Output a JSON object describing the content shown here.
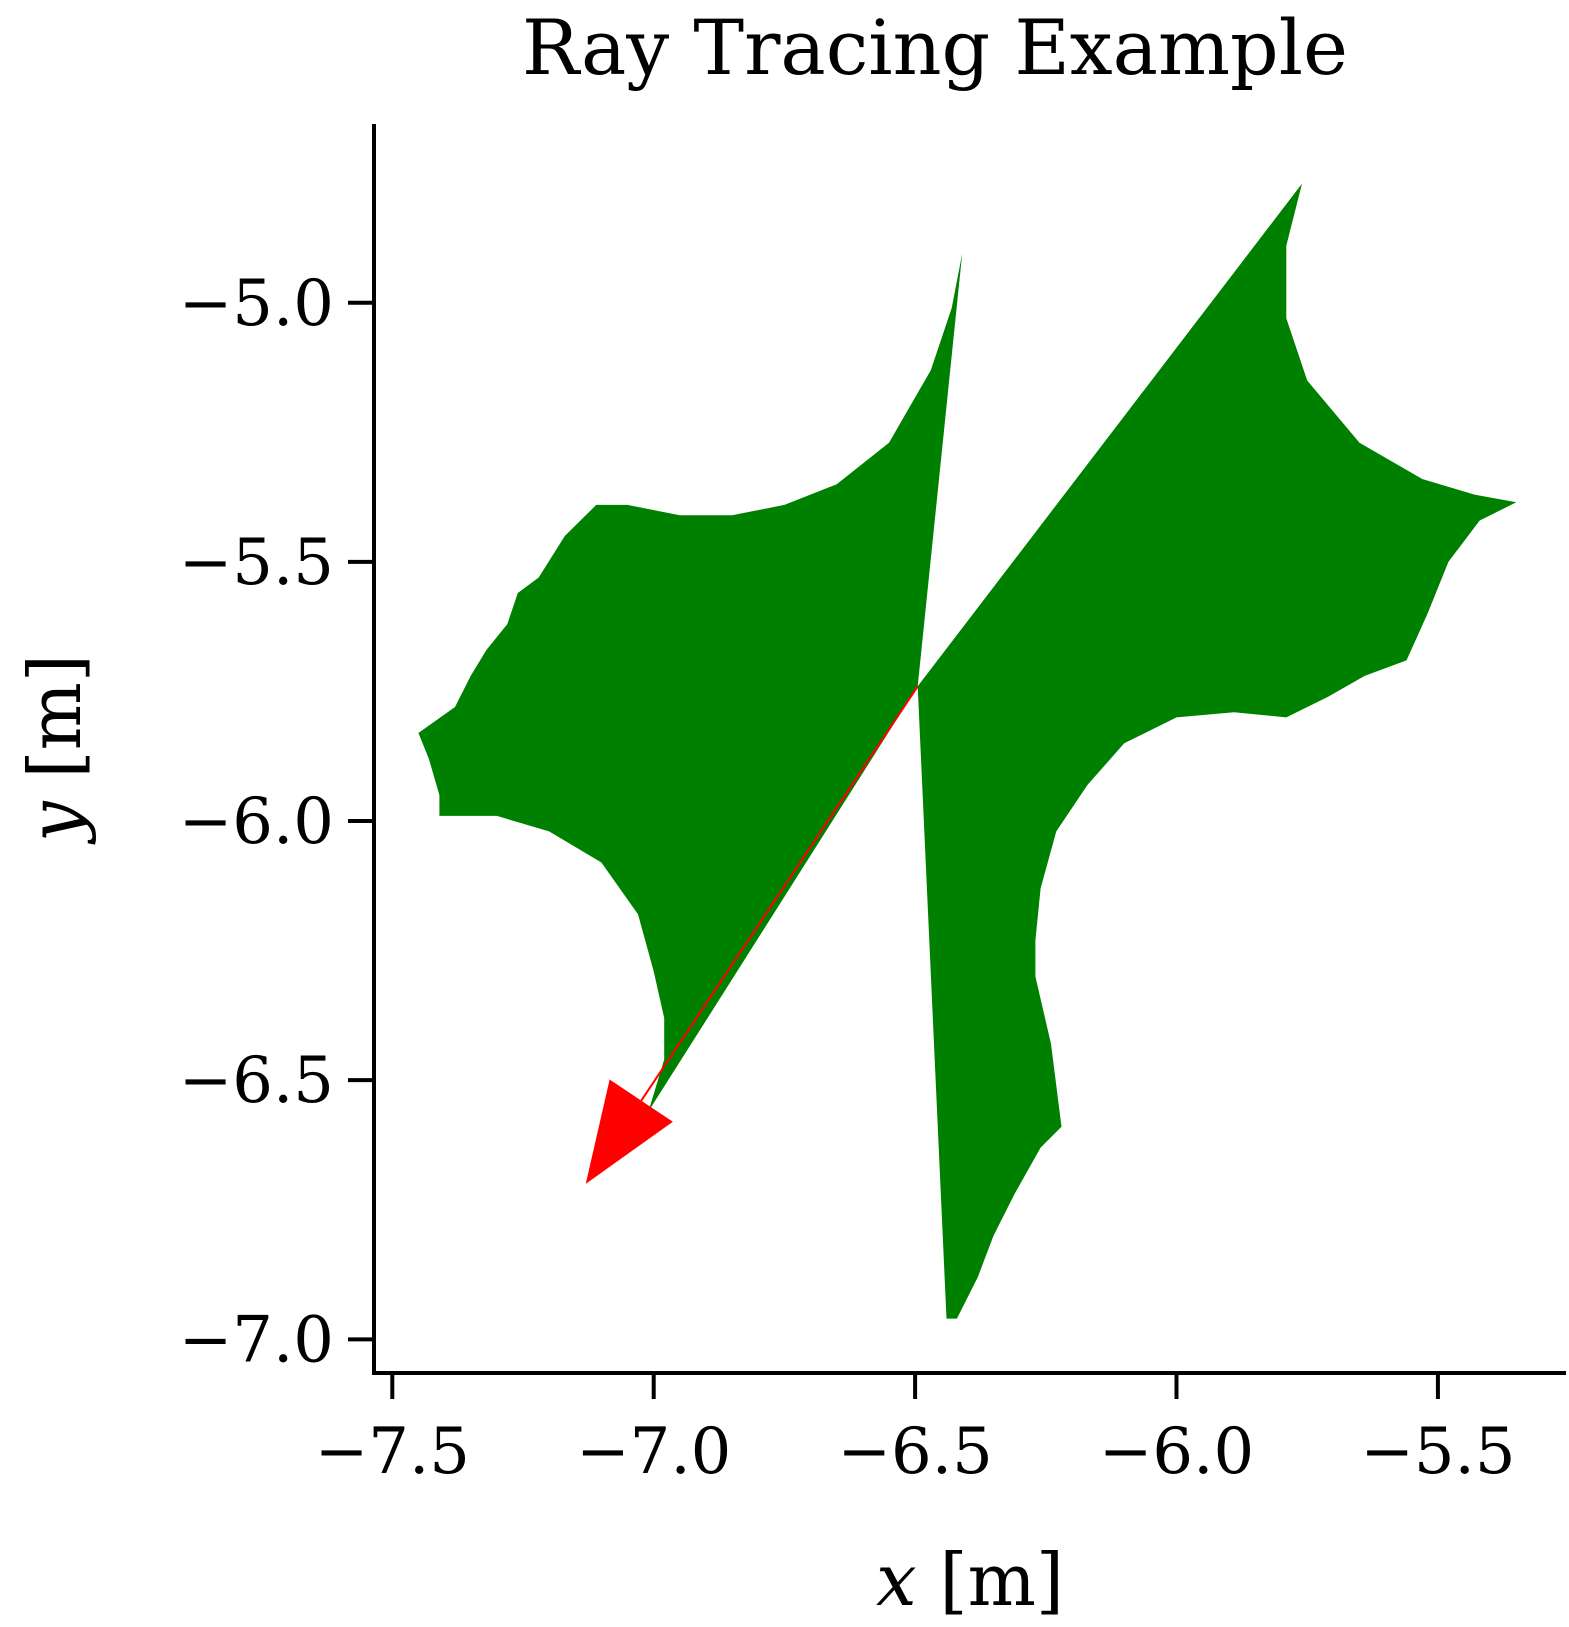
{
  "chart_data": {
    "type": "area",
    "title": "Ray Tracing Example",
    "xlabel": {
      "var": "x",
      "unit": " [m]"
    },
    "ylabel": {
      "var": "y",
      "unit": " [m]"
    },
    "xlim": [
      -7.535,
      -5.255
    ],
    "ylim": [
      -7.065,
      -4.655
    ],
    "xticks": [
      -7.5,
      -7.0,
      -6.5,
      -6.0,
      -5.5
    ],
    "yticks": [
      -5.0,
      -5.5,
      -6.0,
      -6.5,
      -7.0
    ],
    "xtick_labels": [
      "−7.5",
      "−7.0",
      "−6.5",
      "−6.0",
      "−5.5"
    ],
    "ytick_labels": [
      "−5.0",
      "−5.5",
      "−6.0",
      "−6.5",
      "−7.0"
    ],
    "grid": false,
    "colors": {
      "ray_fan": "#008000",
      "arrow": "#ff0000"
    },
    "series": [
      {
        "kind": "filled-region",
        "points": [
          [
            -6.495,
            -5.74
          ],
          [
            -6.41,
            -4.905
          ],
          [
            -6.43,
            -5.01
          ],
          [
            -6.47,
            -5.13
          ],
          [
            -6.55,
            -5.27
          ],
          [
            -6.65,
            -5.35
          ],
          [
            -6.75,
            -5.39
          ],
          [
            -6.85,
            -5.41
          ],
          [
            -6.95,
            -5.41
          ],
          [
            -7.05,
            -5.39
          ],
          [
            -7.11,
            -5.39
          ],
          [
            -7.17,
            -5.45
          ],
          [
            -7.22,
            -5.53
          ],
          [
            -7.26,
            -5.56
          ],
          [
            -7.28,
            -5.62
          ],
          [
            -7.32,
            -5.67
          ],
          [
            -7.35,
            -5.72
          ],
          [
            -7.38,
            -5.78
          ],
          [
            -7.45,
            -5.83
          ],
          [
            -7.43,
            -5.88
          ],
          [
            -7.41,
            -5.95
          ],
          [
            -7.41,
            -5.99
          ],
          [
            -7.3,
            -5.99
          ],
          [
            -7.2,
            -6.02
          ],
          [
            -7.1,
            -6.08
          ],
          [
            -7.03,
            -6.18
          ],
          [
            -7.0,
            -6.29
          ],
          [
            -6.98,
            -6.38
          ],
          [
            -6.98,
            -6.46
          ],
          [
            -7.01,
            -6.56
          ],
          [
            -6.495,
            -5.74
          ],
          [
            -5.76,
            -4.77
          ],
          [
            -5.79,
            -4.89
          ],
          [
            -5.79,
            -5.03
          ],
          [
            -5.75,
            -5.15
          ],
          [
            -5.65,
            -5.27
          ],
          [
            -5.53,
            -5.34
          ],
          [
            -5.43,
            -5.37
          ],
          [
            -5.35,
            -5.385
          ],
          [
            -5.42,
            -5.42
          ],
          [
            -5.48,
            -5.5
          ],
          [
            -5.52,
            -5.6
          ],
          [
            -5.56,
            -5.69
          ],
          [
            -5.64,
            -5.72
          ],
          [
            -5.71,
            -5.76
          ],
          [
            -5.79,
            -5.8
          ],
          [
            -5.89,
            -5.79
          ],
          [
            -6.0,
            -5.8
          ],
          [
            -6.1,
            -5.85
          ],
          [
            -6.17,
            -5.93
          ],
          [
            -6.23,
            -6.02
          ],
          [
            -6.26,
            -6.13
          ],
          [
            -6.27,
            -6.23
          ],
          [
            -6.27,
            -6.3
          ],
          [
            -6.24,
            -6.43
          ],
          [
            -6.22,
            -6.59
          ],
          [
            -6.26,
            -6.63
          ],
          [
            -6.31,
            -6.72
          ],
          [
            -6.35,
            -6.8
          ],
          [
            -6.38,
            -6.88
          ],
          [
            -6.42,
            -6.96
          ],
          [
            -6.44,
            -6.96
          ],
          [
            -6.495,
            -5.74
          ]
        ]
      },
      {
        "kind": "arrow",
        "start": [
          -6.495,
          -5.74
        ],
        "end": [
          -7.13,
          -6.7
        ]
      }
    ]
  }
}
